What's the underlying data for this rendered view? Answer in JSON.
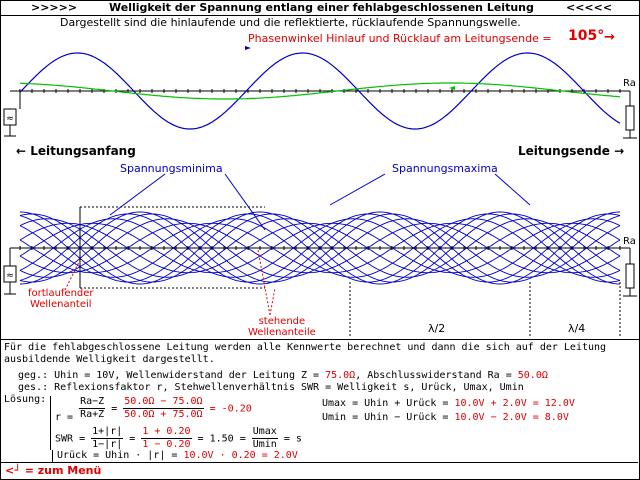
{
  "title": {
    "left_arrows": ">>>>>",
    "text": "Welligkeit der Spannung entlang einer fehlabgeschlossenen Leitung",
    "right_arrows": "<<<<<"
  },
  "top_panel": {
    "caption": "Dargestellt sind die hinlaufende und die reflektierte, rücklaufende Spannungswelle.",
    "phase_label": "Phasenwinkel Hinlauf und Rücklauf am Leitungsende =",
    "phase_value": "105°",
    "ra_label": "Ra",
    "source_symbol": "≈",
    "leitungsanfang": "Leitungsanfang",
    "leitungsende": "Leitungsende",
    "arrow_left": "←",
    "arrow_right": "→"
  },
  "bottom_panel": {
    "label_minima": "Spannungsminima",
    "label_maxima": "Spannungsmaxima",
    "label_fortlaufend_1": "fortlaufender",
    "label_fortlaufend_2": "Wellenanteil",
    "label_stehend_1": "stehende",
    "label_stehend_2": "Wellenanteile",
    "lambda_half": "λ/2",
    "lambda_quarter": "λ/4",
    "ra_label": "Ra",
    "source_symbol": "≈"
  },
  "text": {
    "intro_1": "Für die fehlabgeschlossene Leitung werden alle Kennwerte berechnet und dann die sich auf der Leitung",
    "intro_2": "ausbildende Welligkeit dargestellt.",
    "geg_label": "geg.:",
    "geg_a": "Uhin = 10V, Wellenwiderstand der Leitung Z =",
    "geg_z": "75.0Ω",
    "geg_b": ", Abschlusswiderstand Ra =",
    "geg_ra": "50.0Ω",
    "ges_label": "ges.:",
    "ges": "Reflexionsfaktor r, Stehwellenverhältnis SWR = Welligkeit s, Urück, Umax, Umin",
    "loesung_label": "Lösung:",
    "r_eq": "r =",
    "r_num": "Ra−Z",
    "r_den": "Ra+Z",
    "r_eq2": "=",
    "r_num_v": "50.0Ω −  75.0Ω",
    "r_den_v": "50.0Ω +  75.0Ω",
    "r_res": "= -0.20",
    "swr_eq": "SWR =",
    "swr_num": "1+|r|",
    "swr_den": "1−|r|",
    "swr_eq2": "=",
    "swr_num_v": "1 +  0.20",
    "swr_den_v": "1 −  0.20",
    "swr_res": "= 1.50  =",
    "swr_num2": "Umax",
    "swr_den2": "Umin",
    "swr_s": "= s",
    "urueck_a": "Urück = Uhin · |r| =",
    "urueck_v": "10.0V · 0.20 = 2.0V",
    "umax_a": "Umax = Uhin + Urück =",
    "umax_v": "10.0V +  2.0V = 12.0V",
    "umin_a": "Umin = Uhin − Urück =",
    "umin_v": "10.0V −  2.0V =  8.0V"
  },
  "menu": {
    "key": "<┘",
    "label": "= zum Menü"
  },
  "colors": {
    "wave_forward": "#0000c8",
    "wave_reflected": "#00c000",
    "highlight": "#e00000"
  }
}
